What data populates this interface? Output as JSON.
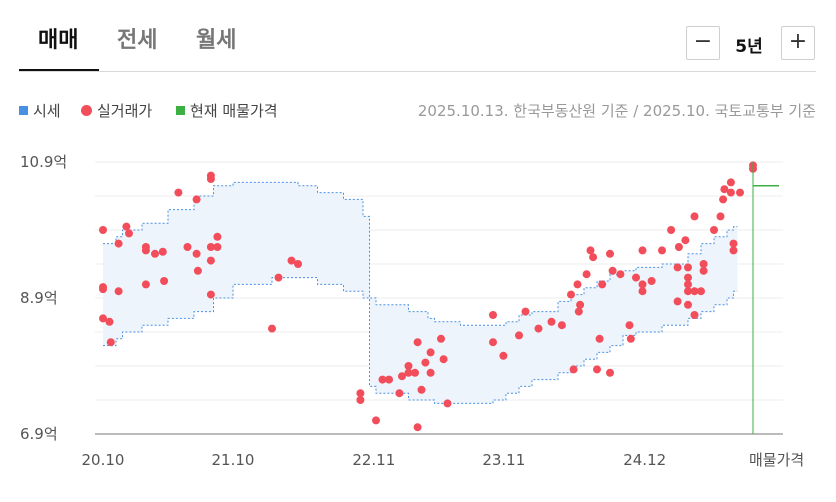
{
  "tabs": [
    {
      "label": "매매",
      "active": true
    },
    {
      "label": "전세",
      "active": false
    },
    {
      "label": "월세",
      "active": false
    }
  ],
  "period": {
    "minus": "−",
    "value": "5년",
    "plus": "+"
  },
  "legend": [
    {
      "label": "시세",
      "color": "#4a90e2",
      "shape": "square"
    },
    {
      "label": "실거래가",
      "color": "#f24d5a",
      "shape": "circle"
    },
    {
      "label": "현재 매물가격",
      "color": "#3cb043",
      "shape": "square"
    }
  ],
  "basis_text": "2025.10.13. 한국부동산원 기준 / 2025.10. 국토교통부 기준",
  "chart_data": {
    "type": "scatter",
    "x_unit": "month (years since 2020.10)",
    "y_unit": "억",
    "x_range": [
      0,
      5.0
    ],
    "ylim": [
      6.9,
      10.9
    ],
    "y_ticks": [
      {
        "value": 10.9,
        "label": "10.9억"
      },
      {
        "value": 8.9,
        "label": "8.9억"
      },
      {
        "value": 6.9,
        "label": "6.9억"
      }
    ],
    "x_ticks": [
      {
        "value": 0,
        "label": "20.10"
      },
      {
        "value": 1,
        "label": "21.10"
      },
      {
        "value": 2.083,
        "label": "22.11"
      },
      {
        "value": 3.083,
        "label": "23.11"
      },
      {
        "value": 4.167,
        "label": "24.12"
      },
      {
        "value": 5.0,
        "label": "매물가격"
      }
    ],
    "grid": true,
    "series": [
      {
        "name": "시세",
        "type": "band",
        "color": "#4a90e2",
        "steps": [
          {
            "x": 0.0,
            "hi": 9.7,
            "lo": 8.2
          },
          {
            "x": 0.1,
            "hi": 9.8,
            "lo": 8.3
          },
          {
            "x": 0.15,
            "hi": 9.9,
            "lo": 8.4
          },
          {
            "x": 0.3,
            "hi": 10.0,
            "lo": 8.5
          },
          {
            "x": 0.5,
            "hi": 10.2,
            "lo": 8.6
          },
          {
            "x": 0.7,
            "hi": 10.4,
            "lo": 8.7
          },
          {
            "x": 0.85,
            "hi": 10.55,
            "lo": 8.9
          },
          {
            "x": 1.0,
            "hi": 10.6,
            "lo": 9.1
          },
          {
            "x": 1.3,
            "hi": 10.6,
            "lo": 9.2
          },
          {
            "x": 1.5,
            "hi": 10.55,
            "lo": 9.2
          },
          {
            "x": 1.65,
            "hi": 10.45,
            "lo": 9.1
          },
          {
            "x": 1.85,
            "hi": 10.35,
            "lo": 9.0
          },
          {
            "x": 2.0,
            "hi": 10.1,
            "lo": 8.9
          },
          {
            "x": 2.05,
            "hi": 8.9,
            "lo": 7.6
          },
          {
            "x": 2.1,
            "hi": 8.8,
            "lo": 7.5
          },
          {
            "x": 2.35,
            "hi": 8.7,
            "lo": 7.4
          },
          {
            "x": 2.5,
            "hi": 8.6,
            "lo": 7.4
          },
          {
            "x": 2.55,
            "hi": 8.55,
            "lo": 7.35
          },
          {
            "x": 2.75,
            "hi": 8.5,
            "lo": 7.35
          },
          {
            "x": 3.0,
            "hi": 8.5,
            "lo": 7.4
          },
          {
            "x": 3.1,
            "hi": 8.55,
            "lo": 7.5
          },
          {
            "x": 3.2,
            "hi": 8.65,
            "lo": 7.6
          },
          {
            "x": 3.3,
            "hi": 8.7,
            "lo": 7.7
          },
          {
            "x": 3.5,
            "hi": 8.85,
            "lo": 7.8
          },
          {
            "x": 3.6,
            "hi": 8.95,
            "lo": 7.9
          },
          {
            "x": 3.7,
            "hi": 9.05,
            "lo": 8.0
          },
          {
            "x": 3.8,
            "hi": 9.15,
            "lo": 8.1
          },
          {
            "x": 3.9,
            "hi": 9.25,
            "lo": 8.2
          },
          {
            "x": 4.0,
            "hi": 9.3,
            "lo": 8.35
          },
          {
            "x": 4.1,
            "hi": 9.35,
            "lo": 8.4
          },
          {
            "x": 4.3,
            "hi": 9.4,
            "lo": 8.5
          },
          {
            "x": 4.5,
            "hi": 9.55,
            "lo": 8.6
          },
          {
            "x": 4.6,
            "hi": 9.7,
            "lo": 8.7
          },
          {
            "x": 4.7,
            "hi": 9.8,
            "lo": 8.8
          },
          {
            "x": 4.8,
            "hi": 9.9,
            "lo": 8.9
          },
          {
            "x": 4.85,
            "hi": 9.95,
            "lo": 9.0
          }
        ],
        "end_x": 4.88
      },
      {
        "name": "실거래가",
        "type": "scatter",
        "color": "#f24d5a",
        "points": [
          [
            0.0,
            9.9
          ],
          [
            0.0,
            9.06
          ],
          [
            0.0,
            9.03
          ],
          [
            0.0,
            8.6
          ],
          [
            0.05,
            8.55
          ],
          [
            0.06,
            8.25
          ],
          [
            0.12,
            9.7
          ],
          [
            0.12,
            9.0
          ],
          [
            0.18,
            9.95
          ],
          [
            0.2,
            9.85
          ],
          [
            0.33,
            9.65
          ],
          [
            0.33,
            9.6
          ],
          [
            0.4,
            9.55
          ],
          [
            0.33,
            9.1
          ],
          [
            0.46,
            9.58
          ],
          [
            0.47,
            9.15
          ],
          [
            0.58,
            10.45
          ],
          [
            0.65,
            9.65
          ],
          [
            0.72,
            10.35
          ],
          [
            0.72,
            9.55
          ],
          [
            0.73,
            9.3
          ],
          [
            0.83,
            10.7
          ],
          [
            0.83,
            10.65
          ],
          [
            0.83,
            9.65
          ],
          [
            0.83,
            9.45
          ],
          [
            0.83,
            8.95
          ],
          [
            0.88,
            9.8
          ],
          [
            0.88,
            9.65
          ],
          [
            1.3,
            8.45
          ],
          [
            1.35,
            9.2
          ],
          [
            1.45,
            9.45
          ],
          [
            1.5,
            9.4
          ],
          [
            1.98,
            7.5
          ],
          [
            1.98,
            7.4
          ],
          [
            2.1,
            7.1
          ],
          [
            2.15,
            7.7
          ],
          [
            2.2,
            7.7
          ],
          [
            2.28,
            7.5
          ],
          [
            2.3,
            7.75
          ],
          [
            2.35,
            7.8
          ],
          [
            2.35,
            7.9
          ],
          [
            2.4,
            7.8
          ],
          [
            2.42,
            7.0
          ],
          [
            2.42,
            8.25
          ],
          [
            2.45,
            7.55
          ],
          [
            2.48,
            7.95
          ],
          [
            2.52,
            8.1
          ],
          [
            2.52,
            7.8
          ],
          [
            2.6,
            8.3
          ],
          [
            2.65,
            7.35
          ],
          [
            2.62,
            8.0
          ],
          [
            3.0,
            8.65
          ],
          [
            3.0,
            8.25
          ],
          [
            3.08,
            8.05
          ],
          [
            3.2,
            8.35
          ],
          [
            3.25,
            8.7
          ],
          [
            3.35,
            8.45
          ],
          [
            3.45,
            8.55
          ],
          [
            3.53,
            8.5
          ],
          [
            3.6,
            8.95
          ],
          [
            3.62,
            7.85
          ],
          [
            3.65,
            9.1
          ],
          [
            3.66,
            8.7
          ],
          [
            3.67,
            8.8
          ],
          [
            3.72,
            9.25
          ],
          [
            3.75,
            9.6
          ],
          [
            3.77,
            9.5
          ],
          [
            3.8,
            7.85
          ],
          [
            3.82,
            8.3
          ],
          [
            3.84,
            9.1
          ],
          [
            3.9,
            7.8
          ],
          [
            3.9,
            9.55
          ],
          [
            3.92,
            9.3
          ],
          [
            3.98,
            9.25
          ],
          [
            4.05,
            8.5
          ],
          [
            4.06,
            8.3
          ],
          [
            4.1,
            9.2
          ],
          [
            4.15,
            9.6
          ],
          [
            4.15,
            9.1
          ],
          [
            4.15,
            9.0
          ],
          [
            4.22,
            9.15
          ],
          [
            4.3,
            9.6
          ],
          [
            4.37,
            9.9
          ],
          [
            4.43,
            9.65
          ],
          [
            4.42,
            9.35
          ],
          [
            4.42,
            8.85
          ],
          [
            4.48,
            9.75
          ],
          [
            4.5,
            9.35
          ],
          [
            4.5,
            9.2
          ],
          [
            4.5,
            9.1
          ],
          [
            4.5,
            9.0
          ],
          [
            4.5,
            8.8
          ],
          [
            4.55,
            10.1
          ],
          [
            4.55,
            9.0
          ],
          [
            4.55,
            8.65
          ],
          [
            4.6,
            9.0
          ],
          [
            4.62,
            9.4
          ],
          [
            4.62,
            9.3
          ],
          [
            4.7,
            9.9
          ],
          [
            4.75,
            10.1
          ],
          [
            4.77,
            10.35
          ],
          [
            4.78,
            10.5
          ],
          [
            4.83,
            10.45
          ],
          [
            4.83,
            10.6
          ],
          [
            4.85,
            9.7
          ],
          [
            4.85,
            9.6
          ],
          [
            4.9,
            10.45
          ],
          [
            5.0,
            10.85
          ],
          [
            5.0,
            10.8
          ]
        ]
      },
      {
        "name": "현재 매물가격",
        "type": "line",
        "color": "#3cb043",
        "x": 5.0,
        "value": 10.55
      }
    ]
  }
}
